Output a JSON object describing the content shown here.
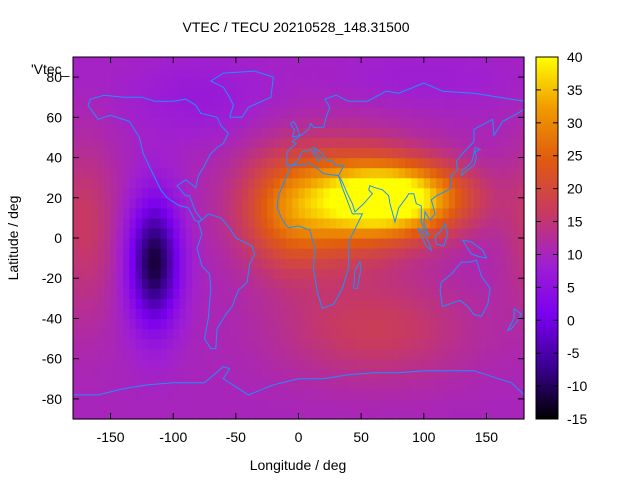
{
  "chart_data": {
    "type": "heatmap",
    "title": "VTEC / TECU 20210528_148.31500",
    "xlabel": "Longitude / deg",
    "ylabel": "Latitude / deg",
    "key_label": "'Vtec_",
    "xlim": [
      -180,
      180
    ],
    "ylim": [
      -90,
      90
    ],
    "x_ticks": [
      {
        "value": -150,
        "label": "-150"
      },
      {
        "value": -100,
        "label": "-100"
      },
      {
        "value": -50,
        "label": "-50"
      },
      {
        "value": 0,
        "label": "0"
      },
      {
        "value": 50,
        "label": "50"
      },
      {
        "value": 100,
        "label": "100"
      },
      {
        "value": 150,
        "label": "150"
      }
    ],
    "y_ticks": [
      {
        "value": 80,
        "label": "80"
      },
      {
        "value": 60,
        "label": "60"
      },
      {
        "value": 40,
        "label": "40"
      },
      {
        "value": 20,
        "label": "20"
      },
      {
        "value": 0,
        "label": "0"
      },
      {
        "value": -20,
        "label": "-20"
      },
      {
        "value": -40,
        "label": "-40"
      },
      {
        "value": -60,
        "label": "-60"
      },
      {
        "value": -80,
        "label": "-80"
      }
    ],
    "colorbar": {
      "range": [
        -15,
        40
      ],
      "ticks": [
        {
          "value": 40,
          "label": "40"
        },
        {
          "value": 35,
          "label": "35"
        },
        {
          "value": 30,
          "label": "30"
        },
        {
          "value": 25,
          "label": "25"
        },
        {
          "value": 20,
          "label": "20"
        },
        {
          "value": 15,
          "label": "15"
        },
        {
          "value": 10,
          "label": "10"
        },
        {
          "value": 5,
          "label": "5"
        },
        {
          "value": 0,
          "label": "0"
        },
        {
          "value": -5,
          "label": "-5"
        },
        {
          "value": -10,
          "label": "-10"
        },
        {
          "value": -15,
          "label": "-15"
        }
      ],
      "palette": [
        "#000000",
        "#3a0090",
        "#7a00f0",
        "#a020d0",
        "#c83a60",
        "#e05a10",
        "#f09a00",
        "#ffff00"
      ]
    },
    "background_value": 10,
    "field_features": [
      {
        "lon": 80,
        "lat": 20,
        "sigma_lon": 38,
        "sigma_lat": 12,
        "amplitude": 28
      },
      {
        "lon": 30,
        "lat": 18,
        "sigma_lon": 45,
        "sigma_lat": 20,
        "amplitude": 18
      },
      {
        "lon": -10,
        "lat": 10,
        "sigma_lon": 25,
        "sigma_lat": 20,
        "amplitude": 8
      },
      {
        "lon": 60,
        "lat": -45,
        "sigma_lon": 55,
        "sigma_lat": 18,
        "amplitude": 7
      },
      {
        "lon": -170,
        "lat": 5,
        "sigma_lon": 18,
        "sigma_lat": 30,
        "amplitude": 6
      },
      {
        "lon": -115,
        "lat": -12,
        "sigma_lon": 14,
        "sigma_lat": 22,
        "amplitude": -22
      },
      {
        "lon": -80,
        "lat": 70,
        "sigma_lon": 40,
        "sigma_lat": 15,
        "amplitude": -3
      },
      {
        "lon": 100,
        "lat": 80,
        "sigma_lon": 60,
        "sigma_lat": 10,
        "amplitude": -2
      }
    ],
    "grid": false,
    "legend": "top-left",
    "overlay": "coastlines"
  }
}
